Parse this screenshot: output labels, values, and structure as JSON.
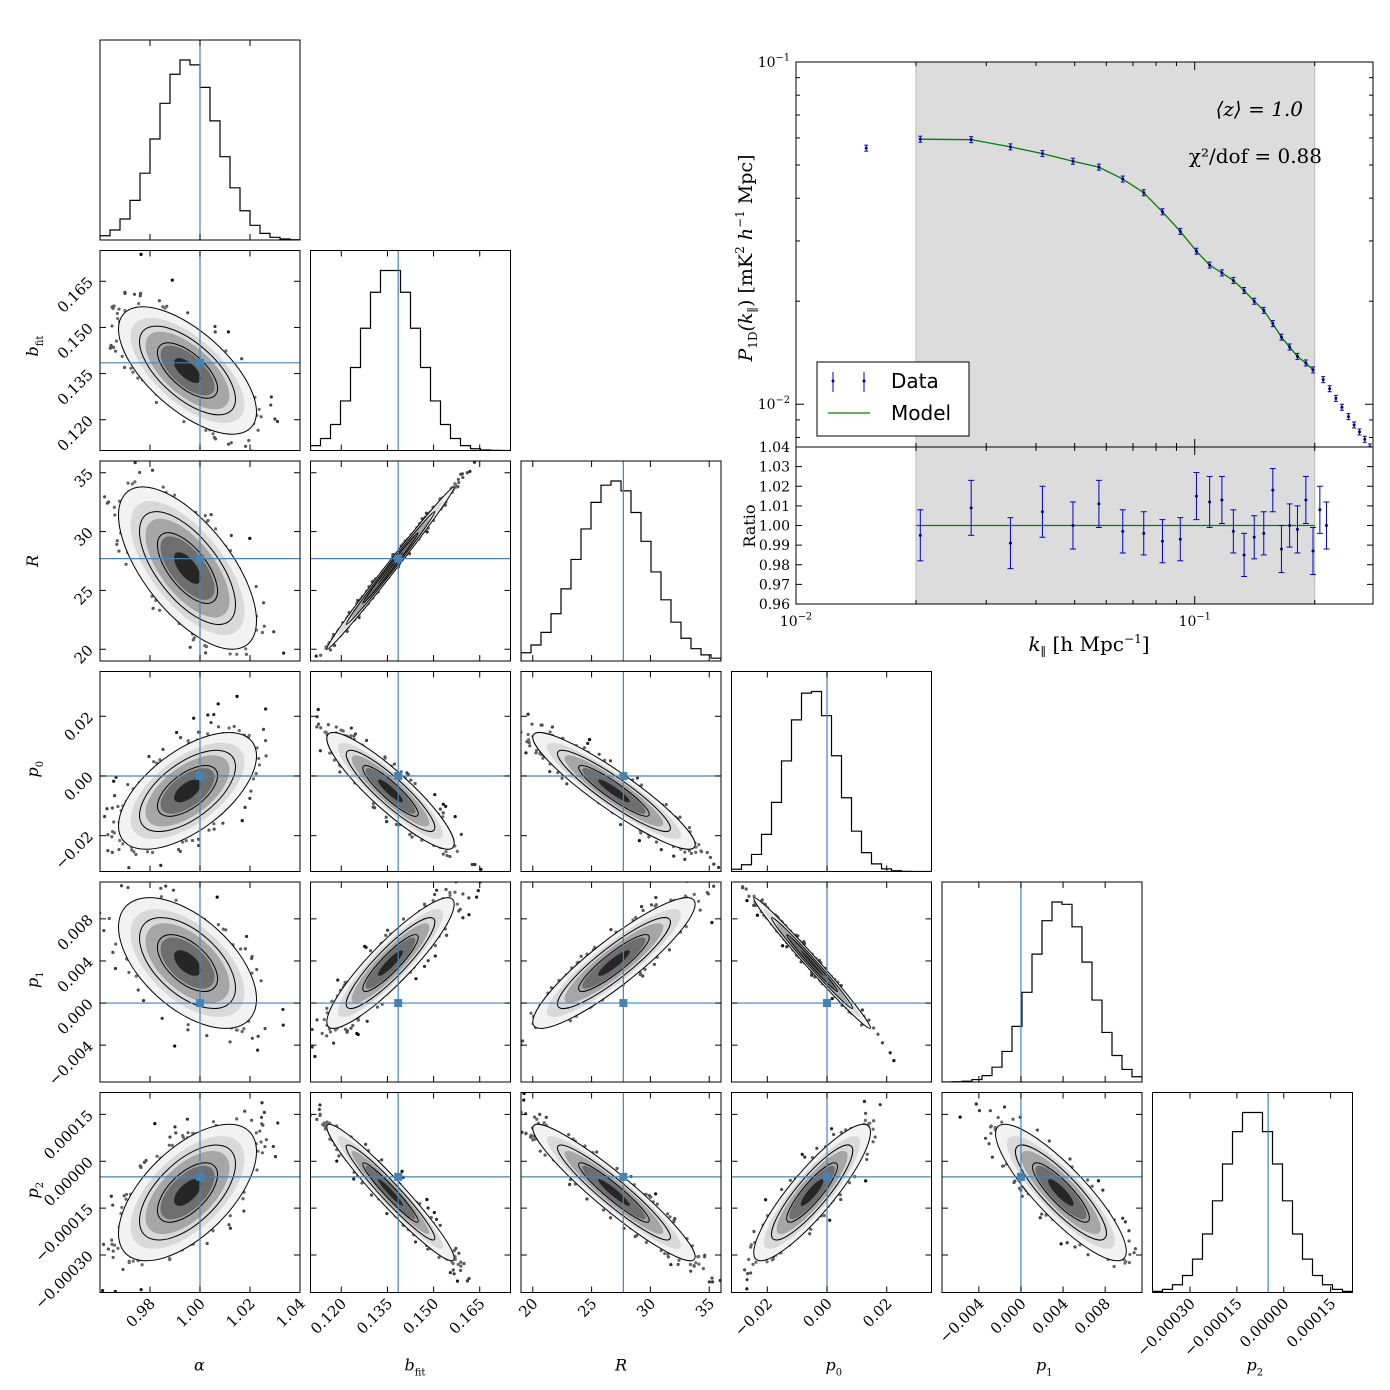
{
  "chart_data": [
    {
      "type": "scatter",
      "subtype": "corner-plot",
      "parameters": [
        {
          "key": "alpha",
          "label": "α",
          "truth": 1.0,
          "mean": 0.995,
          "sigma": 0.012,
          "range": [
            0.96,
            1.04
          ],
          "ticks": [
            "0.98",
            "1.00",
            "1.02",
            "1.04"
          ],
          "tick_values": [
            0.98,
            1.0,
            1.02,
            1.04
          ]
        },
        {
          "key": "b_fit",
          "label": "b",
          "label_sub": "fit",
          "truth": 0.1385,
          "mean": 0.136,
          "sigma": 0.009,
          "range": [
            0.11,
            0.175
          ],
          "ticks": [
            "0.120",
            "0.135",
            "0.150",
            "0.165"
          ],
          "tick_values": [
            0.12,
            0.135,
            0.15,
            0.165
          ]
        },
        {
          "key": "R",
          "label": "R",
          "truth": 27.7,
          "mean": 26.9,
          "sigma": 3.0,
          "range": [
            19,
            36
          ],
          "ticks": [
            "20",
            "25",
            "30",
            "35"
          ],
          "tick_values": [
            20,
            25,
            30,
            35
          ]
        },
        {
          "key": "p0",
          "label": "p",
          "label_sub": "0",
          "truth": 0.0,
          "mean": -0.005,
          "sigma": 0.0085,
          "range": [
            -0.032,
            0.035
          ],
          "ticks": [
            "−0.02",
            "0.00",
            "0.02"
          ],
          "tick_values": [
            -0.02,
            0.0,
            0.02
          ]
        },
        {
          "key": "p1",
          "label": "p",
          "label_sub": "1",
          "truth": 0.0,
          "mean": 0.0038,
          "sigma": 0.0027,
          "range": [
            -0.0075,
            0.0115
          ],
          "ticks": [
            "−0.004",
            "0.000",
            "0.004",
            "0.008"
          ],
          "tick_values": [
            -0.004,
            0.0,
            0.004,
            0.008
          ]
        },
        {
          "key": "p2",
          "label": "p",
          "label_sub": "2",
          "truth": -5e-05,
          "mean": -0.0001,
          "sigma": 9.5e-05,
          "range": [
            -0.00042,
            0.00022
          ],
          "ticks": [
            "−0.00030",
            "−0.00015",
            "0.00000",
            "0.00015"
          ],
          "tick_values": [
            -0.0003,
            -0.00015,
            0.0,
            0.00015
          ]
        }
      ],
      "correlations": {
        "alpha-b_fit": -0.65,
        "alpha-R": -0.65,
        "alpha-p0": 0.6,
        "alpha-p1": -0.55,
        "alpha-p2": 0.6,
        "b_fit-R": 0.995,
        "b_fit-p0": -0.9,
        "b_fit-p1": 0.9,
        "b_fit-p2": -0.96,
        "R-p0": -0.92,
        "R-p1": 0.9,
        "R-p2": -0.94,
        "p0-p1": -0.99,
        "p0-p2": 0.88,
        "p1-p2": -0.86
      },
      "truth_line_color": "#4682b4"
    },
    {
      "type": "line",
      "ylabel": "P_1D(k_∥) [mK² h⁻¹ Mpc]",
      "ylabel_parts": {
        "P": "P",
        "sub": "1D",
        "args": "(k",
        "arg_sub": "∥",
        "close": ")",
        "unit_open": "[mK",
        "sq": "2",
        "h": "h",
        "neg1": "−1",
        "unit_close": "Mpc]"
      },
      "xlabel": "k_∥ [h Mpc⁻¹]",
      "xlabel_parts": {
        "k": "k",
        "sub": "∥",
        "open": "[h Mpc",
        "neg1": "−1",
        "close": "]"
      },
      "xscale": "log",
      "yscale": "log",
      "xlim": [
        0.01,
        0.28
      ],
      "ylim": [
        0.0075,
        0.1
      ],
      "y_tick_labels": [
        {
          "value": 0.1,
          "base": "10",
          "exp": "−1"
        },
        {
          "value": 0.01,
          "base": "10",
          "exp": "−2"
        }
      ],
      "x_tick_labels": [
        {
          "value": 0.01,
          "base": "10",
          "exp": "−2"
        },
        {
          "value": 0.1,
          "base": "10",
          "exp": "−1"
        }
      ],
      "fit_range": [
        0.02,
        0.2
      ],
      "annotation_z": "⟨z⟩ = 1.0",
      "annotation_chi": "χ²/dof = 0.88",
      "legend": {
        "placement": "lower-left",
        "entries": [
          {
            "label": "Data",
            "kind": "errorbar",
            "color": "#0000cc"
          },
          {
            "label": "Model",
            "kind": "line",
            "color": "#008000"
          }
        ]
      },
      "data": [
        {
          "k": 0.015,
          "p": 0.056
        },
        {
          "k": 0.0205,
          "p": 0.0595
        },
        {
          "k": 0.0275,
          "p": 0.0593
        },
        {
          "k": 0.0345,
          "p": 0.0565
        },
        {
          "k": 0.0415,
          "p": 0.054
        },
        {
          "k": 0.0495,
          "p": 0.0513
        },
        {
          "k": 0.0575,
          "p": 0.0493
        },
        {
          "k": 0.066,
          "p": 0.0455
        },
        {
          "k": 0.0745,
          "p": 0.0415
        },
        {
          "k": 0.083,
          "p": 0.0365
        },
        {
          "k": 0.092,
          "p": 0.032
        },
        {
          "k": 0.101,
          "p": 0.028
        },
        {
          "k": 0.109,
          "p": 0.0255
        },
        {
          "k": 0.117,
          "p": 0.0242
        },
        {
          "k": 0.125,
          "p": 0.023
        },
        {
          "k": 0.133,
          "p": 0.0215
        },
        {
          "k": 0.141,
          "p": 0.02
        },
        {
          "k": 0.149,
          "p": 0.0188
        },
        {
          "k": 0.157,
          "p": 0.0172
        },
        {
          "k": 0.165,
          "p": 0.0157
        },
        {
          "k": 0.173,
          "p": 0.0147
        },
        {
          "k": 0.181,
          "p": 0.0138
        },
        {
          "k": 0.19,
          "p": 0.0132
        },
        {
          "k": 0.198,
          "p": 0.0126
        },
        {
          "k": 0.21,
          "p": 0.0118
        },
        {
          "k": 0.218,
          "p": 0.0111
        },
        {
          "k": 0.226,
          "p": 0.0104
        },
        {
          "k": 0.234,
          "p": 0.0098
        },
        {
          "k": 0.243,
          "p": 0.0092
        },
        {
          "k": 0.251,
          "p": 0.0087
        },
        {
          "k": 0.259,
          "p": 0.0083
        },
        {
          "k": 0.267,
          "p": 0.0079
        },
        {
          "k": 0.275,
          "p": 0.0075
        }
      ]
    },
    {
      "type": "scatter",
      "ylabel": "Ratio",
      "xscale": "log",
      "xlim": [
        0.01,
        0.28
      ],
      "ylim": [
        0.96,
        1.04
      ],
      "y_ticks": [
        "0.96",
        "0.97",
        "0.98",
        "0.99",
        "1.00",
        "1.01",
        "1.02",
        "1.03",
        "1.04"
      ],
      "y_tick_values": [
        0.96,
        0.97,
        0.98,
        0.99,
        1.0,
        1.01,
        1.02,
        1.03,
        1.04
      ],
      "reference": 1.0,
      "points": [
        {
          "k": 0.0205,
          "r": 0.995,
          "err": 0.013
        },
        {
          "k": 0.0275,
          "r": 1.009,
          "err": 0.014
        },
        {
          "k": 0.0345,
          "r": 0.991,
          "err": 0.013
        },
        {
          "k": 0.0415,
          "r": 1.007,
          "err": 0.013
        },
        {
          "k": 0.0495,
          "r": 1.0,
          "err": 0.012
        },
        {
          "k": 0.0575,
          "r": 1.011,
          "err": 0.012
        },
        {
          "k": 0.066,
          "r": 0.997,
          "err": 0.011
        },
        {
          "k": 0.0745,
          "r": 0.996,
          "err": 0.011
        },
        {
          "k": 0.083,
          "r": 0.992,
          "err": 0.011
        },
        {
          "k": 0.092,
          "r": 0.993,
          "err": 0.011
        },
        {
          "k": 0.101,
          "r": 1.015,
          "err": 0.012
        },
        {
          "k": 0.109,
          "r": 1.012,
          "err": 0.013
        },
        {
          "k": 0.117,
          "r": 1.013,
          "err": 0.012
        },
        {
          "k": 0.125,
          "r": 0.997,
          "err": 0.011
        },
        {
          "k": 0.133,
          "r": 0.985,
          "err": 0.011
        },
        {
          "k": 0.141,
          "r": 0.994,
          "err": 0.011
        },
        {
          "k": 0.149,
          "r": 0.996,
          "err": 0.011
        },
        {
          "k": 0.157,
          "r": 1.018,
          "err": 0.011
        },
        {
          "k": 0.165,
          "r": 0.988,
          "err": 0.012
        },
        {
          "k": 0.173,
          "r": 1.0,
          "err": 0.011
        },
        {
          "k": 0.181,
          "r": 0.998,
          "err": 0.012
        },
        {
          "k": 0.19,
          "r": 1.013,
          "err": 0.012
        },
        {
          "k": 0.198,
          "r": 0.987,
          "err": 0.012
        },
        {
          "k": 0.206,
          "r": 1.008,
          "err": 0.012
        },
        {
          "k": 0.214,
          "r": 1.0,
          "err": 0.012
        }
      ]
    }
  ]
}
